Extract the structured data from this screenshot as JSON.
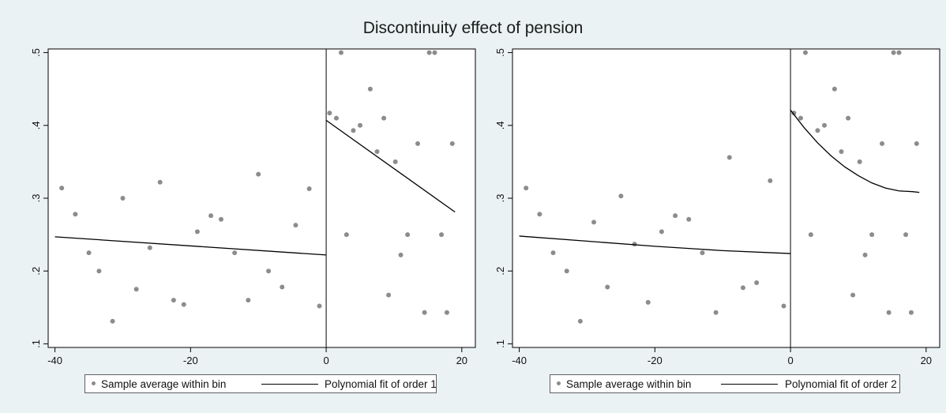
{
  "figure_title": "Discontinuity effect of pension",
  "colors": {
    "background": "#eaf2f3",
    "plot_area": "#ffffff",
    "points": "#8c8c8c",
    "fit_line": "#000000"
  },
  "chart_data": [
    {
      "type": "scatter",
      "xlim": [
        -41,
        22
      ],
      "ylim": [
        0.095,
        0.505
      ],
      "xticks": [
        -40,
        -20,
        0,
        20
      ],
      "xtick_labels": [
        "-40",
        "-20",
        "0",
        "20"
      ],
      "yticks": [
        0.1,
        0.2,
        0.3,
        0.4,
        0.5
      ],
      "ytick_labels": [
        ".1",
        ".2",
        ".3",
        ".4",
        ".5"
      ],
      "grid": false,
      "cutoff_x": 0,
      "legend_position": "bottom",
      "legend": {
        "points": "Sample average within bin",
        "fit": "Polynomial fit of order 1"
      },
      "points": {
        "x": [
          -39,
          -37,
          -35,
          -33.5,
          -31.5,
          -30,
          -28,
          -26,
          -24.5,
          -22.5,
          -21,
          -19,
          -17,
          -15.5,
          -13.5,
          -11.5,
          -10,
          -8.5,
          -6.5,
          -4.5,
          -2.5,
          -1,
          0.5,
          1.5,
          2.2,
          3,
          4,
          5,
          6.5,
          7.5,
          8.5,
          9.2,
          10.2,
          11,
          12,
          13.5,
          14.5,
          15.2,
          16,
          17,
          17.8,
          18.6
        ],
        "y": [
          0.314,
          0.278,
          0.225,
          0.2,
          0.131,
          0.3,
          0.175,
          0.232,
          0.322,
          0.16,
          0.154,
          0.254,
          0.276,
          0.271,
          0.225,
          0.16,
          0.333,
          0.2,
          0.178,
          0.263,
          0.313,
          0.152,
          0.417,
          0.41,
          0.5,
          0.25,
          0.393,
          0.4,
          0.45,
          0.364,
          0.41,
          0.167,
          0.35,
          0.222,
          0.25,
          0.375,
          0.143,
          0.5,
          0.5,
          0.25,
          0.143,
          0.375
        ]
      },
      "fit_left": {
        "x": [
          -40,
          0
        ],
        "y": [
          0.247,
          0.222
        ]
      },
      "fit_right": {
        "x": [
          0,
          19
        ],
        "y": [
          0.407,
          0.281
        ]
      }
    },
    {
      "type": "scatter",
      "xlim": [
        -41,
        22
      ],
      "ylim": [
        0.095,
        0.505
      ],
      "xticks": [
        -40,
        -20,
        0,
        20
      ],
      "xtick_labels": [
        "-40",
        "-20",
        "0",
        "20"
      ],
      "yticks": [
        0.1,
        0.2,
        0.3,
        0.4,
        0.5
      ],
      "ytick_labels": [
        ".1",
        ".2",
        ".3",
        ".4",
        ".5"
      ],
      "grid": false,
      "cutoff_x": 0,
      "legend_position": "bottom",
      "legend": {
        "points": "Sample average within bin",
        "fit": "Polynomial fit of order 2"
      },
      "points": {
        "x": [
          -39,
          -37,
          -35,
          -33,
          -31,
          -29,
          -27,
          -25,
          -23,
          -21,
          -19,
          -17,
          -15,
          -13,
          -11,
          -9,
          -7,
          -5,
          -3,
          -1,
          0.5,
          1.5,
          2.2,
          3,
          4,
          5,
          6.5,
          7.5,
          8.5,
          9.2,
          10.2,
          11,
          12,
          13.5,
          14.5,
          15.2,
          16,
          17,
          17.8,
          18.6
        ],
        "y": [
          0.314,
          0.278,
          0.225,
          0.2,
          0.131,
          0.267,
          0.178,
          0.303,
          0.237,
          0.157,
          0.254,
          0.276,
          0.271,
          0.225,
          0.143,
          0.356,
          0.177,
          0.184,
          0.324,
          0.152,
          0.417,
          0.41,
          0.5,
          0.25,
          0.393,
          0.4,
          0.45,
          0.364,
          0.41,
          0.167,
          0.35,
          0.222,
          0.25,
          0.375,
          0.143,
          0.5,
          0.5,
          0.25,
          0.143,
          0.375
        ]
      },
      "fit_left": {
        "x": [
          -40,
          -30,
          -20,
          -10,
          0
        ],
        "y": [
          0.248,
          0.241,
          0.234,
          0.228,
          0.224
        ]
      },
      "fit_right": {
        "x": [
          0,
          2,
          4,
          6,
          8,
          10,
          12,
          14,
          16,
          18,
          19
        ],
        "y": [
          0.421,
          0.397,
          0.376,
          0.358,
          0.343,
          0.331,
          0.321,
          0.314,
          0.31,
          0.309,
          0.308
        ]
      }
    }
  ]
}
